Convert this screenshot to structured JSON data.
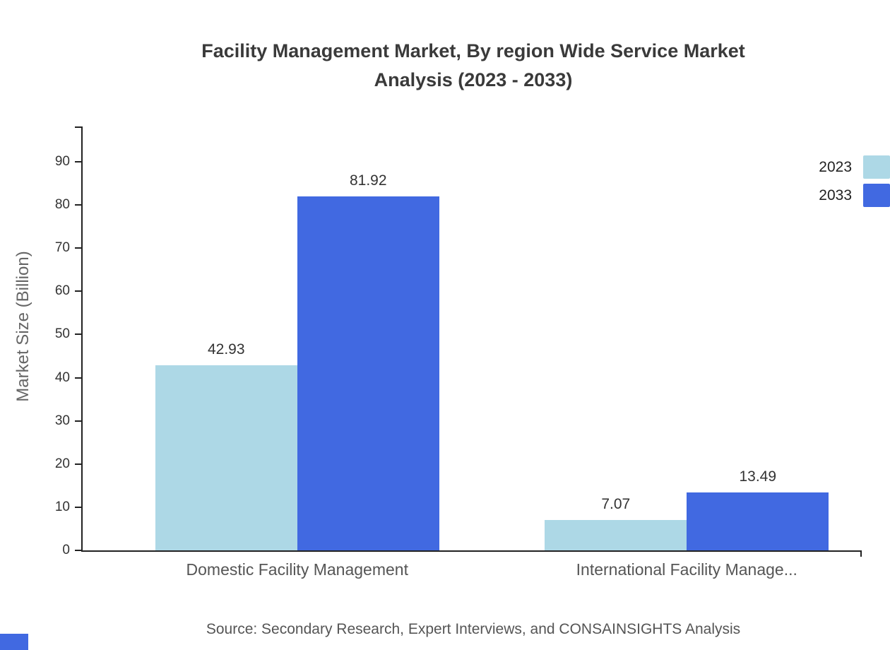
{
  "chart_data": {
    "type": "bar",
    "title": "Facility Management Market, By region Wide Service Market Analysis (2023 - 2033)",
    "ylabel": "Market Size (Billion)",
    "categories": [
      "Domestic Facility Management",
      "International Facility Manage..."
    ],
    "series": [
      {
        "name": "2023",
        "color": "#add8e6",
        "values": [
          42.93,
          7.07
        ]
      },
      {
        "name": "2033",
        "color": "#4169e1",
        "values": [
          81.92,
          13.49
        ]
      }
    ],
    "ylim": [
      0,
      98
    ],
    "yticks": [
      0,
      10,
      20,
      30,
      40,
      50,
      60,
      70,
      80,
      90
    ],
    "grid": false,
    "legend_position": "top-right",
    "value_label_decimals": 2
  },
  "source": "Source: Secondary Research, Expert Interviews, and CONSAINSIGHTS Analysis",
  "colors": {
    "series_2023": "#add8e6",
    "series_2033": "#4169e1",
    "axis": "#222222",
    "title_text": "#3a3a3a",
    "corner_square": "#4169e1"
  }
}
